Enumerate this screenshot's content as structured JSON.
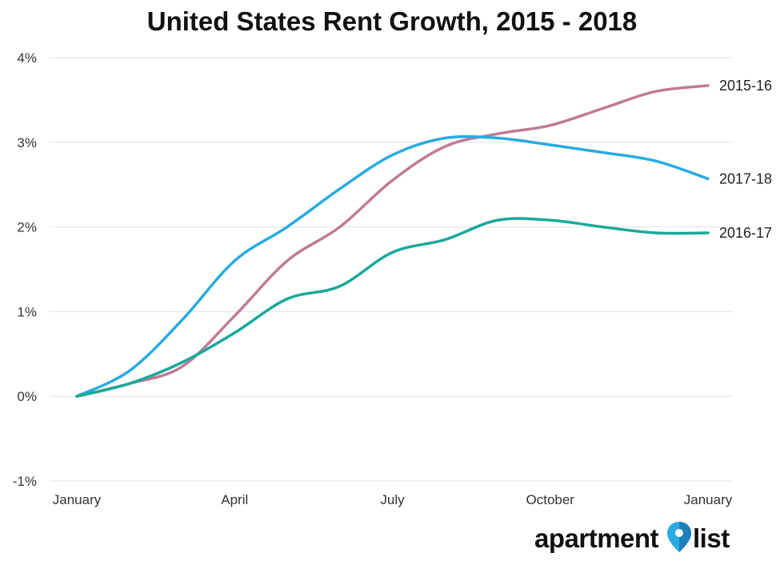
{
  "chart_data": {
    "type": "line",
    "title": "United States Rent Growth, 2015 - 2018",
    "xlabel": "",
    "ylabel": "",
    "x_tick_labels": [
      "January",
      "April",
      "July",
      "October",
      "January"
    ],
    "y_tick_labels": [
      "4%",
      "3%",
      "2%",
      "1%",
      "0%",
      "-1%"
    ],
    "y_ticks": [
      4,
      3,
      2,
      1,
      0,
      -1
    ],
    "ylim": [
      -1,
      4
    ],
    "x_range": [
      0,
      12
    ],
    "grid": "horizontal",
    "legend": "labels at line ends (right)",
    "series": [
      {
        "name": "2015-16",
        "color": "#c07b96",
        "x": [
          0,
          1,
          2,
          3,
          4,
          5,
          6,
          7,
          8,
          9,
          10,
          11,
          12
        ],
        "values": [
          0,
          0.15,
          0.35,
          0.95,
          1.6,
          2.0,
          2.55,
          2.95,
          3.1,
          3.2,
          3.4,
          3.6,
          3.67
        ]
      },
      {
        "name": "2017-18",
        "color": "#29abe2",
        "x": [
          0,
          1,
          2,
          3,
          4,
          5,
          6,
          7,
          8,
          9,
          10,
          11,
          12
        ],
        "values": [
          0,
          0.3,
          0.9,
          1.6,
          2.0,
          2.45,
          2.85,
          3.05,
          3.05,
          2.97,
          2.88,
          2.78,
          2.57
        ]
      },
      {
        "name": "2016-17",
        "color": "#1aa89a",
        "x": [
          0,
          1,
          2,
          3,
          4,
          5,
          6,
          7,
          8,
          9,
          10,
          11,
          12
        ],
        "values": [
          0,
          0.15,
          0.4,
          0.75,
          1.15,
          1.3,
          1.7,
          1.85,
          2.08,
          2.08,
          2.0,
          1.93,
          1.93
        ]
      }
    ]
  },
  "logo": {
    "text_left": "apartment",
    "text_right": "list",
    "icon": "map-pin-icon",
    "pin_color": "#29abe2"
  }
}
